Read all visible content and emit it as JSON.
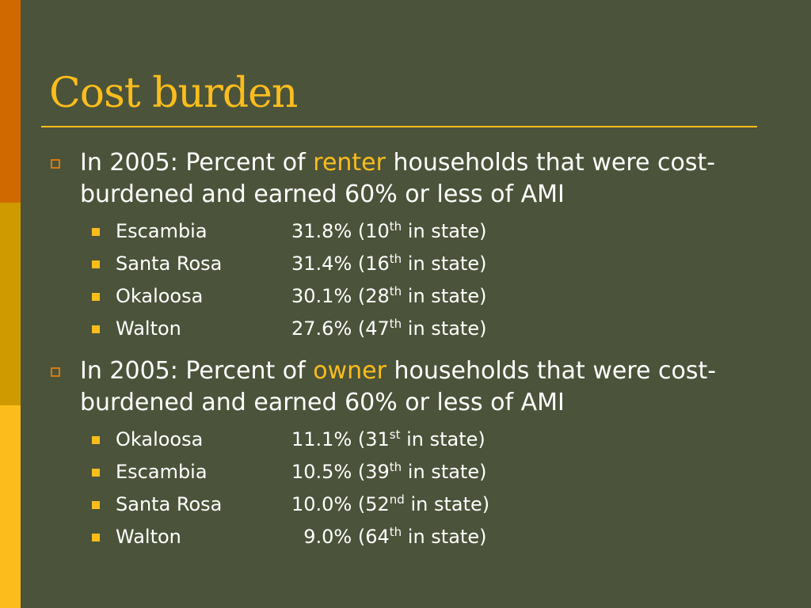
{
  "slide": {
    "title": "Cost burden",
    "sections": [
      {
        "prefix": "In 2005: Percent of ",
        "highlight": "renter",
        "suffix": " households that were cost-burdened and earned 60% or less of AMI",
        "rows": [
          {
            "county": "Escambia",
            "pct": "31.8% (10",
            "rank_suffix": "th",
            "tail": " in state)"
          },
          {
            "county": "Santa Rosa",
            "pct": "31.4% (16",
            "rank_suffix": "th",
            "tail": " in state)"
          },
          {
            "county": "Okaloosa",
            "pct": "30.1% (28",
            "rank_suffix": "th",
            "tail": " in state)"
          },
          {
            "county": "Walton",
            "pct": "27.6% (47",
            "rank_suffix": "th",
            "tail": " in state)"
          }
        ]
      },
      {
        "prefix": "In 2005: Percent of ",
        "highlight": "owner",
        "suffix": " households that were cost-burdened and earned 60% or less of AMI",
        "rows": [
          {
            "county": "Okaloosa",
            "pct": "11.1% (31",
            "rank_suffix": "st",
            "tail": " in state)"
          },
          {
            "county": "Escambia",
            "pct": "10.5% (39",
            "rank_suffix": "th",
            "tail": " in state)"
          },
          {
            "county": "Santa Rosa",
            "pct": "10.0% (52",
            "rank_suffix": "nd",
            "tail": " in state)"
          },
          {
            "county": "Walton",
            "pct": "  9.0% (64",
            "rank_suffix": "th",
            "tail": " in state)"
          }
        ]
      }
    ]
  },
  "colors": {
    "background": "#4b533a",
    "accent": "#fcbd1c",
    "stripe_top": "#d06a00",
    "stripe_mid": "#cf9a00",
    "stripe_bottom": "#fcbd1c"
  }
}
